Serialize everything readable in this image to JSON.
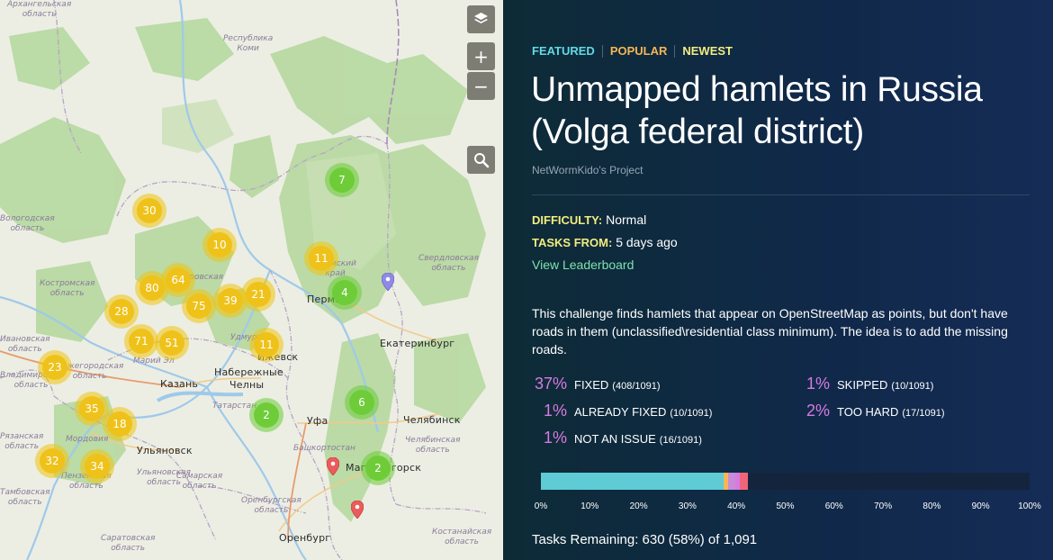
{
  "map": {
    "controls": {
      "layers_label": "layers",
      "zoom_in": "+",
      "zoom_out": "−",
      "search": "search"
    },
    "places": [
      {
        "name": "Пермь",
        "key": "perm"
      },
      {
        "name": "Екатеринбург",
        "key": "ekb"
      },
      {
        "name": "Ижевск",
        "key": "izhevsk"
      },
      {
        "name": "Набережные",
        "key": "nch1"
      },
      {
        "name": "Челны",
        "key": "nch2"
      },
      {
        "name": "Казань",
        "key": "kazan"
      },
      {
        "name": "Уфа",
        "key": "ufa"
      },
      {
        "name": "Челябинск",
        "key": "chel"
      },
      {
        "name": "Ульяновск",
        "key": "ulyan"
      },
      {
        "name": "Магнитогорск",
        "key": "magn"
      },
      {
        "name": "Оренбург",
        "key": "orenb"
      }
    ],
    "regions": [
      {
        "name": "Архангельская\nобласть",
        "key": "arkh"
      },
      {
        "name": "Республика\nКоми",
        "key": "komi"
      },
      {
        "name": "Костромская\nобласть",
        "key": "kostr"
      },
      {
        "name": "Кировская",
        "key": "kirov"
      },
      {
        "name": "Пермский\nкрай",
        "key": "permk"
      },
      {
        "name": "Свердловская\nобласть",
        "key": "sverd"
      },
      {
        "name": "Удмуртия",
        "key": "udm"
      },
      {
        "name": "Марий Эл",
        "key": "mari"
      },
      {
        "name": "Нижегородская\nобласть",
        "key": "nizh"
      },
      {
        "name": "Татарстан",
        "key": "tat"
      },
      {
        "name": "Башкортостан",
        "key": "bash"
      },
      {
        "name": "Челябинская\nобласть",
        "key": "chelr"
      },
      {
        "name": "Мордовия",
        "key": "mord"
      },
      {
        "name": "Пензенская\nобласть",
        "key": "penz"
      },
      {
        "name": "Тамбовская\nобласть",
        "key": "tamb"
      },
      {
        "name": "Ульяновская\nобласть",
        "key": "ulr"
      },
      {
        "name": "Самарская\nобласть",
        "key": "sam"
      },
      {
        "name": "Оренбургская\nобласть",
        "key": "orr"
      },
      {
        "name": "Саратовская\nобласть",
        "key": "sar"
      },
      {
        "name": "Костанайская\nобласть",
        "key": "kost"
      },
      {
        "name": "Вологодская\nобласть",
        "key": "volog"
      },
      {
        "name": "Ивановская\nобласть",
        "key": "ivan"
      },
      {
        "name": "Владимирская\nобласть",
        "key": "vlad"
      },
      {
        "name": "Рязанская\nобласть",
        "key": "ryaz"
      }
    ],
    "clusters": [
      {
        "count": "30",
        "color": "yellow",
        "key": "c30"
      },
      {
        "count": "10",
        "color": "yellow",
        "key": "c10"
      },
      {
        "count": "7",
        "color": "green",
        "key": "c7"
      },
      {
        "count": "11",
        "color": "yellow",
        "key": "c11a"
      },
      {
        "count": "64",
        "color": "yellow",
        "key": "c64"
      },
      {
        "count": "80",
        "color": "yellow",
        "key": "c80"
      },
      {
        "count": "75",
        "color": "yellow",
        "key": "c75"
      },
      {
        "count": "39",
        "color": "yellow",
        "key": "c39"
      },
      {
        "count": "21",
        "color": "yellow",
        "key": "c21"
      },
      {
        "count": "4",
        "color": "green",
        "key": "c4"
      },
      {
        "count": "28",
        "color": "yellow",
        "key": "c28"
      },
      {
        "count": "71",
        "color": "yellow",
        "key": "c71"
      },
      {
        "count": "51",
        "color": "yellow",
        "key": "c51"
      },
      {
        "count": "11",
        "color": "yellow",
        "key": "c11b"
      },
      {
        "count": "23",
        "color": "yellow",
        "key": "c23"
      },
      {
        "count": "35",
        "color": "yellow",
        "key": "c35"
      },
      {
        "count": "18",
        "color": "yellow",
        "key": "c18"
      },
      {
        "count": "2",
        "color": "green",
        "key": "c2a"
      },
      {
        "count": "6",
        "color": "green",
        "key": "c6"
      },
      {
        "count": "32",
        "color": "yellow",
        "key": "c32"
      },
      {
        "count": "34",
        "color": "yellow",
        "key": "c34"
      },
      {
        "count": "2",
        "color": "green",
        "key": "c2b"
      }
    ]
  },
  "panel": {
    "tabs": {
      "featured": "FEATURED",
      "popular": "POPULAR",
      "newest": "NEWEST"
    },
    "title": "Unmapped hamlets in Russia (Volga federal district)",
    "owner": "NetWormKido's Project",
    "difficulty_label": "DIFFICULTY:",
    "difficulty_value": "Normal",
    "tasks_from_label": "TASKS FROM:",
    "tasks_from_value": "5 days ago",
    "leaderboard_link": "View Leaderboard",
    "description": "This challenge finds hamlets that appear on OpenStreetMap as points, but don't have roads in them (unclassified\\residential class minimum). The idea is to add the missing roads.",
    "stats": [
      {
        "pct": "37%",
        "label": "FIXED",
        "count": "(408/1091)"
      },
      {
        "pct": "1%",
        "label": "ALREADY FIXED",
        "count": "(10/1091)"
      },
      {
        "pct": "1%",
        "label": "NOT AN ISSUE",
        "count": "(16/1091)"
      },
      {
        "pct": "1%",
        "label": "SKIPPED",
        "count": "(10/1091)"
      },
      {
        "pct": "2%",
        "label": "TOO HARD",
        "count": "(17/1091)"
      }
    ],
    "progress": {
      "segments": [
        {
          "name": "fixed",
          "fraction": 0.374,
          "color": "#5fcbd5"
        },
        {
          "name": "already-fixed",
          "fraction": 0.009,
          "color": "#f6b655"
        },
        {
          "name": "not-an-issue",
          "fraction": 0.015,
          "color": "#c98bd8"
        },
        {
          "name": "skipped",
          "fraction": 0.009,
          "color": "#d77be0"
        },
        {
          "name": "too-hard",
          "fraction": 0.016,
          "color": "#f0657a"
        }
      ],
      "track_color": "#15243d",
      "axis": [
        "0%",
        "10%",
        "20%",
        "30%",
        "40%",
        "50%",
        "60%",
        "70%",
        "80%",
        "90%",
        "100%"
      ]
    },
    "tasks_remaining": "Tasks Remaining: 630 (58%) of 1,091"
  }
}
